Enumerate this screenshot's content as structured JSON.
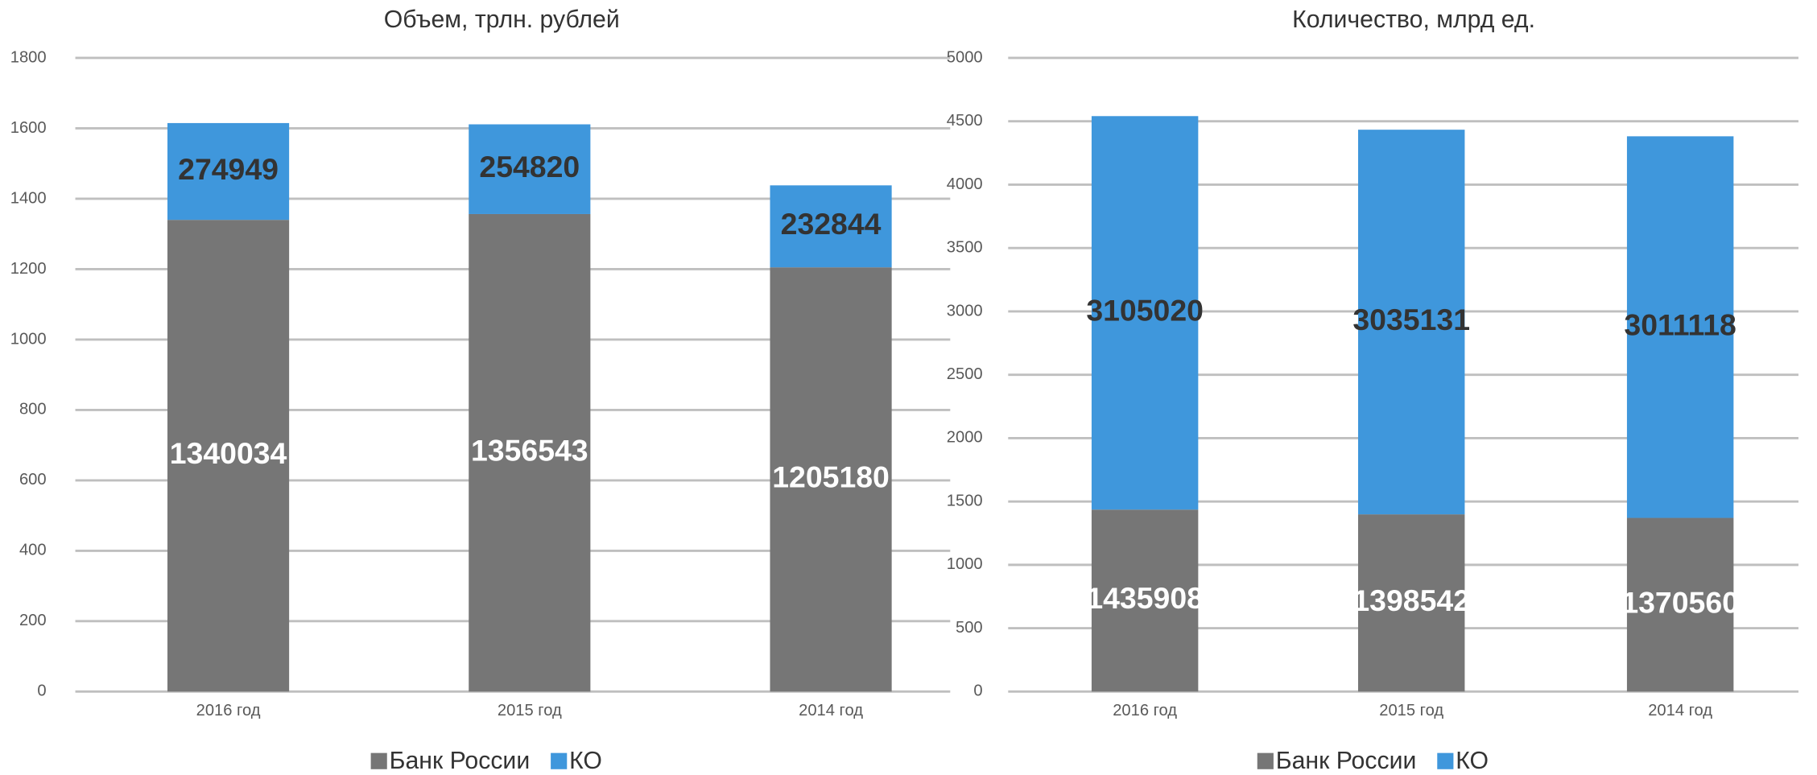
{
  "chart_data": [
    {
      "type": "bar",
      "stacked": true,
      "title": "Объем, трлн. рублей",
      "categories": [
        "2016 год",
        "2015 год",
        "2014 год"
      ],
      "series": [
        {
          "name": "Банк России",
          "color": "#767676",
          "values": [
            1340.034,
            1356.543,
            1205.18
          ],
          "value_labels": [
            "1340034",
            "1356543",
            "1205180"
          ]
        },
        {
          "name": "КО",
          "color": "#3f97dc",
          "values": [
            274.949,
            254.82,
            232.844
          ],
          "value_labels": [
            "274949",
            "254820",
            "232844"
          ]
        }
      ],
      "ylim": [
        0,
        1800
      ],
      "yticks": [
        0,
        200,
        400,
        600,
        800,
        1000,
        1200,
        1400,
        1600,
        1800
      ],
      "grid": true,
      "legend": "bottom"
    },
    {
      "type": "bar",
      "stacked": true,
      "title": "Количество, млрд ед.",
      "categories": [
        "2016 год",
        "2015 год",
        "2014 год"
      ],
      "series": [
        {
          "name": "Банк России",
          "color": "#767676",
          "values": [
            1435.908,
            1398.542,
            1370.56
          ],
          "value_labels": [
            "1435908",
            "1398542",
            "1370560"
          ]
        },
        {
          "name": "КО",
          "color": "#3f97dc",
          "values": [
            3105.02,
            3035.131,
            3011.118
          ],
          "value_labels": [
            "3105020",
            "3035131",
            "3011118"
          ]
        }
      ],
      "ylim": [
        0,
        5000
      ],
      "yticks": [
        0,
        500,
        1000,
        1500,
        2000,
        2500,
        3000,
        3500,
        4000,
        4500,
        5000
      ],
      "grid": true,
      "legend": "bottom"
    }
  ]
}
